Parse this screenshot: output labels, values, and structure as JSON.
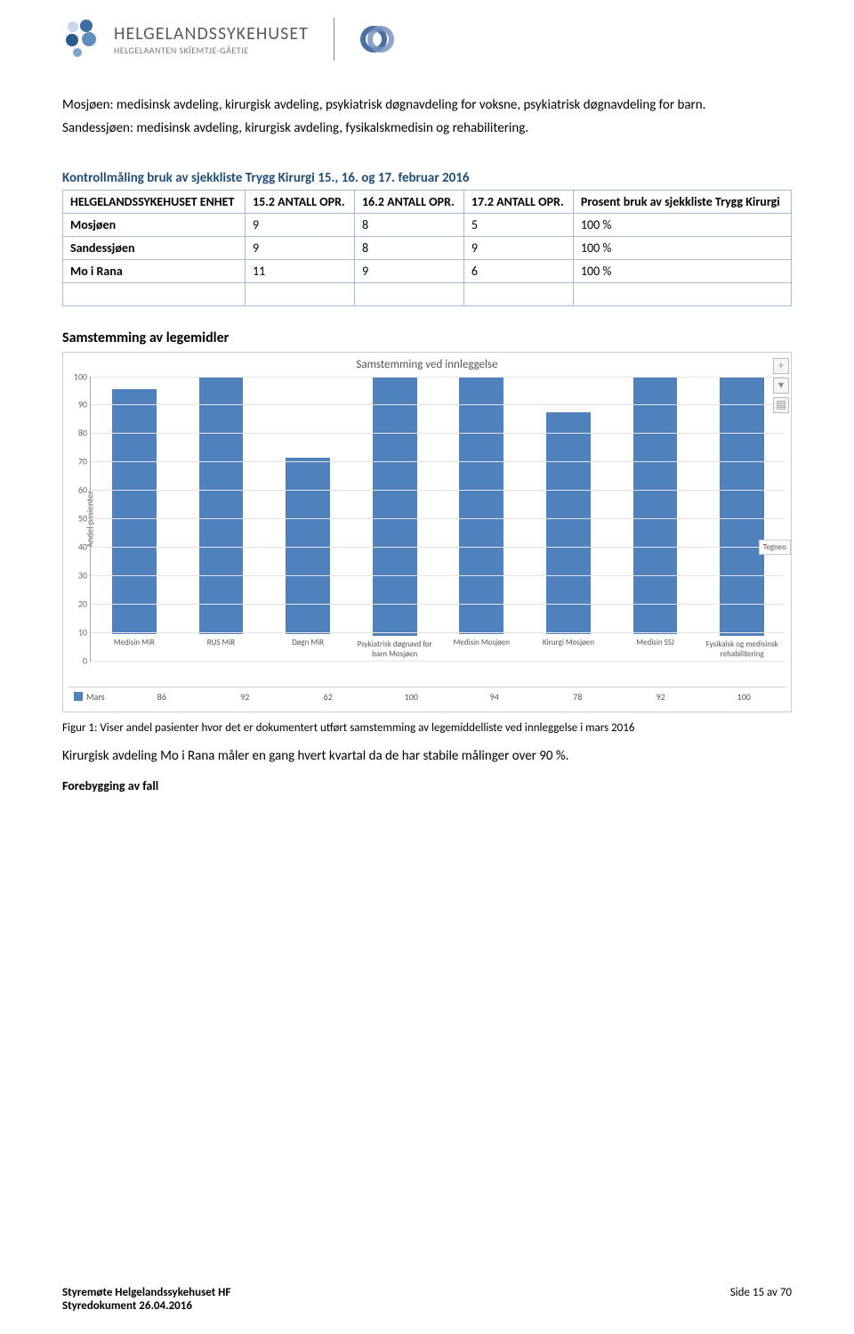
{
  "header": {
    "logo_title": "HELGELANDSSYKEHUSET",
    "logo_sub": "HELGELAANTEN SKÏEMTJE-GÅETIE"
  },
  "paragraphs": {
    "p1": "Mosjøen: medisinsk avdeling, kirurgisk avdeling, psykiatrisk døgnavdeling for voksne, psykiatrisk døgnavdeling for barn.",
    "p2": "Sandessjøen: medisinsk avdeling, kirurgisk avdeling, fysikalskmedisin og rehabilitering."
  },
  "table_heading": "Kontrollmåling bruk av sjekkliste Trygg Kirurgi 15., 16. og 17. februar 2016",
  "table": {
    "columns": [
      "HELGELANDSSYKEHUSET ENHET",
      "15.2 ANTALL OPR.",
      "16.2 ANTALL OPR.",
      "17.2 ANTALL OPR.",
      "Prosent bruk av sjekkliste Trygg Kirurgi"
    ],
    "rows": [
      [
        "Mosjøen",
        "9",
        "8",
        "5",
        "100 %"
      ],
      [
        "Sandessjøen",
        "9",
        "8",
        "9",
        "100 %"
      ],
      [
        "Mo i Rana",
        "11",
        "9",
        "6",
        "100  %"
      ]
    ]
  },
  "subhead": "Samstemming av legemidler",
  "chart": {
    "title": "Samstemming ved innleggelse",
    "ylabel": "Andel pasienter",
    "ylim": [
      0,
      100
    ],
    "ytick_step": 10,
    "bar_color": "#4f81bd",
    "grid_color": "#e4e4e4",
    "categories": [
      "Medisin MiR",
      "RUS MiR",
      "Døgn MiR",
      "Psykiatrisk døgnavd for barn Mosjøen",
      "Medisin Mosjøen",
      "Kirurgi Mosjøen",
      "Medisin SSJ",
      "Fysikalsk og medisinsk rehabilitering"
    ],
    "series_name": "Mars",
    "values": [
      86,
      92,
      62,
      100,
      94,
      78,
      92,
      100
    ],
    "legend_text": "Tegneo"
  },
  "caption": "Figur 1: Viser andel pasienter hvor det er dokumentert utført samstemming av legemiddelliste ved innleggelse i mars 2016",
  "body_text": "Kirurgisk avdeling Mo i Rana måler en gang hvert kvartal da de har stabile målinger over 90 %.",
  "subhead2": "Forebygging av fall",
  "footer": {
    "left1": "Styremøte Helgelandssykehuset HF",
    "left2": "Styredokument 26.04.2016",
    "right": "Side 15 av 70"
  }
}
